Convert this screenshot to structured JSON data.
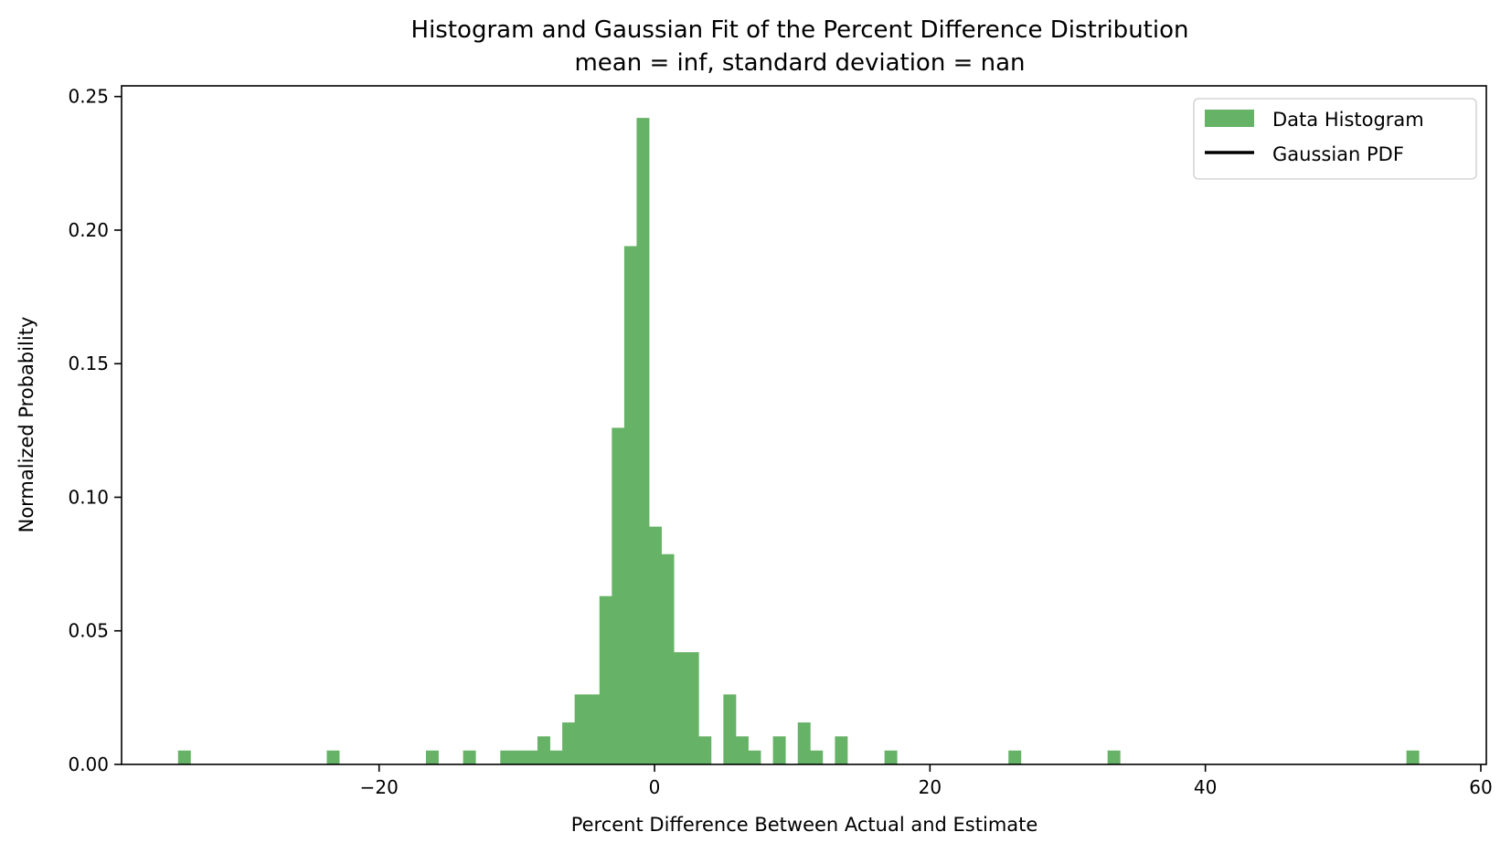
{
  "chart_data": {
    "type": "bar",
    "title": "Histogram and Gaussian Fit of the Percent Difference Distribution",
    "subtitle": "mean = inf, standard deviation = nan",
    "xlabel": "Percent Difference Between Actual and Estimate",
    "ylabel": "Normalized Probability",
    "xlim": [
      -38.7,
      60.4
    ],
    "ylim": [
      0,
      0.254
    ],
    "xticks": [
      {
        "value": -20,
        "label": "−20"
      },
      {
        "value": 0,
        "label": "0"
      },
      {
        "value": 20,
        "label": "20"
      },
      {
        "value": 40,
        "label": "40"
      },
      {
        "value": 60,
        "label": "60"
      }
    ],
    "yticks": [
      {
        "value": 0,
        "label": "0.00"
      },
      {
        "value": 0.05,
        "label": "0.05"
      },
      {
        "value": 0.1,
        "label": "0.10"
      },
      {
        "value": 0.15,
        "label": "0.15"
      },
      {
        "value": 0.2,
        "label": "0.20"
      },
      {
        "value": 0.25,
        "label": "0.25"
      }
    ],
    "grid": false,
    "legend_position": "top-right",
    "series": [
      {
        "name": "Data Histogram",
        "kind": "histogram",
        "color": "#66b266",
        "bin_width": 0.9,
        "bins": [
          {
            "x0": -34.6,
            "height": 0.0052
          },
          {
            "x0": -23.8,
            "height": 0.0052
          },
          {
            "x0": -16.6,
            "height": 0.0052
          },
          {
            "x0": -13.9,
            "height": 0.0052
          },
          {
            "x0": -11.2,
            "height": 0.0052
          },
          {
            "x0": -10.3,
            "height": 0.0052
          },
          {
            "x0": -9.4,
            "height": 0.0052
          },
          {
            "x0": -8.5,
            "height": 0.0105
          },
          {
            "x0": -7.6,
            "height": 0.0052
          },
          {
            "x0": -6.7,
            "height": 0.0157
          },
          {
            "x0": -5.8,
            "height": 0.0262
          },
          {
            "x0": -4.9,
            "height": 0.0262
          },
          {
            "x0": -4.0,
            "height": 0.063
          },
          {
            "x0": -3.1,
            "height": 0.126
          },
          {
            "x0": -2.2,
            "height": 0.194
          },
          {
            "x0": -1.3,
            "height": 0.242
          },
          {
            "x0": -0.4,
            "height": 0.089
          },
          {
            "x0": 0.5,
            "height": 0.0787
          },
          {
            "x0": 1.4,
            "height": 0.042
          },
          {
            "x0": 2.3,
            "height": 0.042
          },
          {
            "x0": 3.2,
            "height": 0.0105
          },
          {
            "x0": 5.0,
            "height": 0.0262
          },
          {
            "x0": 5.9,
            "height": 0.0105
          },
          {
            "x0": 6.8,
            "height": 0.0052
          },
          {
            "x0": 8.6,
            "height": 0.0105
          },
          {
            "x0": 10.4,
            "height": 0.0157
          },
          {
            "x0": 11.3,
            "height": 0.0052
          },
          {
            "x0": 13.1,
            "height": 0.0105
          },
          {
            "x0": 16.7,
            "height": 0.0052
          },
          {
            "x0": 25.7,
            "height": 0.0052
          },
          {
            "x0": 32.9,
            "height": 0.0052
          },
          {
            "x0": 54.6,
            "height": 0.0052
          }
        ]
      },
      {
        "name": "Gaussian PDF",
        "kind": "line",
        "color": "#000000",
        "values": []
      }
    ]
  }
}
